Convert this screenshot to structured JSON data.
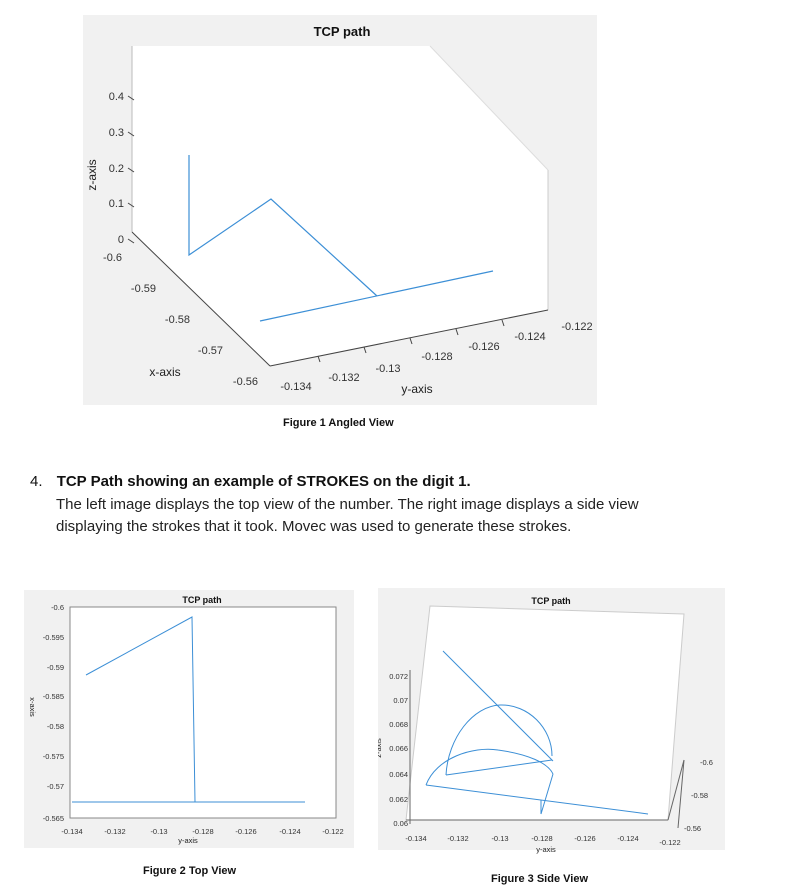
{
  "figure1": {
    "title": "TCP path",
    "caption": "Figure 1 Angled View",
    "x_label": "x-axis",
    "y_label": "y-axis",
    "z_label": "z-axis",
    "z_ticks": [
      "0.4",
      "0.3",
      "0.2",
      "0.1",
      "0"
    ],
    "x_ticks": [
      "-0.6",
      "-0.59",
      "-0.58",
      "-0.57",
      "-0.56"
    ],
    "y_ticks": [
      "-0.134",
      "-0.132",
      "-0.13",
      "-0.128",
      "-0.126",
      "-0.124",
      "-0.122"
    ],
    "line_color": "#3c8fd6",
    "panel_bg": "#f1f1f1"
  },
  "section": {
    "number": "4.",
    "heading": "TCP Path showing an example of STROKES on the digit 1.",
    "body_line1": "The left image displays the top view of the number. The right image displays a side view",
    "body_line2": "displaying the strokes that it took. Movec was used to generate these strokes."
  },
  "figure2": {
    "title": "TCP path",
    "caption": "Figure 2 Top View",
    "x_label": "y-axis",
    "y_label": "x-axis",
    "y_ticks": [
      "-0.6",
      "-0.595",
      "-0.59",
      "-0.585",
      "-0.58",
      "-0.575",
      "-0.57",
      "-0.565"
    ],
    "x_ticks": [
      "-0.134",
      "-0.132",
      "-0.13",
      "-0.128",
      "-0.126",
      "-0.124",
      "-0.122"
    ]
  },
  "figure3": {
    "title": "TCP path",
    "caption": "Figure 3 Side View",
    "x_label": "y-axis",
    "y_label": "z-axis",
    "z_ticks": [
      "0.072",
      "0.07",
      "0.068",
      "0.066",
      "0.064",
      "0.062",
      "0.06"
    ],
    "x_ticks": [
      "-0.134",
      "-0.132",
      "-0.13",
      "-0.128",
      "-0.126",
      "-0.124",
      "-0.122"
    ],
    "right_ticks": [
      "-0.6",
      "-0.58",
      "-0.56"
    ]
  }
}
